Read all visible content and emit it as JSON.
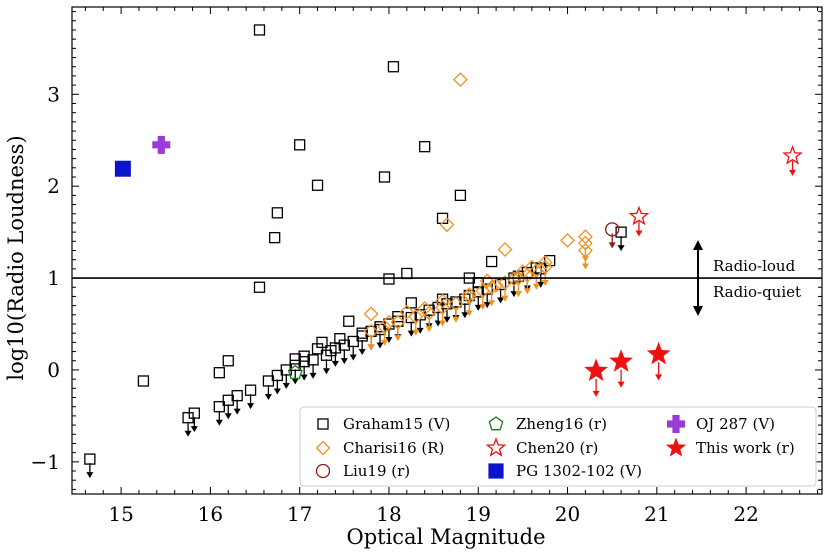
{
  "chart_data": {
    "type": "scatter",
    "xlabel": "Optical Magnitude",
    "ylabel": "log10(Radio Loudness)",
    "xlim": [
      14.45,
      22.85
    ],
    "ylim": [
      -1.35,
      3.95
    ],
    "xticks": [
      15,
      16,
      17,
      18,
      19,
      20,
      21,
      22
    ],
    "yticks": [
      -1,
      0,
      1,
      2,
      3
    ],
    "xtick_labels": [
      "15",
      "16",
      "17",
      "18",
      "19",
      "20",
      "21",
      "22"
    ],
    "ytick_labels": [
      "−1",
      "0",
      "1",
      "2",
      "3"
    ],
    "threshold_y": 1,
    "annotations": {
      "above": "Radio-loud",
      "below": "Radio-quiet"
    },
    "legend_position": "lower-right",
    "series": [
      {
        "name": "Graham15 (V)",
        "marker": "square-open",
        "color": "#000000",
        "detections": [
          [
            16.55,
            3.7
          ],
          [
            18.05,
            3.3
          ],
          [
            17.0,
            2.45
          ],
          [
            18.4,
            2.43
          ],
          [
            17.2,
            2.01
          ],
          [
            17.95,
            2.1
          ],
          [
            18.8,
            1.9
          ],
          [
            18.6,
            1.65
          ],
          [
            16.75,
            1.71
          ],
          [
            16.72,
            1.44
          ],
          [
            16.55,
            0.9
          ],
          [
            18.0,
            0.99
          ],
          [
            18.2,
            1.05
          ],
          [
            19.15,
            1.18
          ],
          [
            18.9,
            1.0
          ],
          [
            19.0,
            0.95
          ],
          [
            15.25,
            -0.12
          ],
          [
            16.2,
            0.1
          ],
          [
            16.1,
            -0.03
          ],
          [
            17.55,
            0.53
          ],
          [
            18.25,
            0.73
          ],
          [
            19.45,
            1.02
          ],
          [
            19.65,
            1.11
          ],
          [
            19.8,
            1.19
          ],
          [
            18.6,
            0.77
          ],
          [
            18.9,
            0.81
          ],
          [
            17.7,
            0.4
          ],
          [
            17.9,
            0.47
          ],
          [
            18.1,
            0.58
          ],
          [
            17.35,
            0.21
          ],
          [
            17.2,
            0.23
          ],
          [
            17.05,
            0.15
          ],
          [
            16.95,
            0.12
          ],
          [
            17.25,
            0.3
          ],
          [
            17.45,
            0.34
          ]
        ],
        "upper_limits": [
          [
            20.6,
            1.5
          ],
          [
            14.65,
            -0.97
          ],
          [
            15.75,
            -0.52
          ],
          [
            15.82,
            -0.47
          ],
          [
            16.1,
            -0.4
          ],
          [
            16.2,
            -0.33
          ],
          [
            16.3,
            -0.28
          ],
          [
            16.45,
            -0.22
          ],
          [
            16.65,
            -0.12
          ],
          [
            16.75,
            -0.06
          ],
          [
            16.85,
            0.0
          ],
          [
            16.95,
            0.05
          ],
          [
            17.05,
            0.09
          ],
          [
            17.15,
            0.11
          ],
          [
            17.3,
            0.16
          ],
          [
            17.4,
            0.24
          ],
          [
            17.5,
            0.27
          ],
          [
            17.6,
            0.31
          ],
          [
            17.7,
            0.37
          ],
          [
            17.8,
            0.42
          ],
          [
            17.9,
            0.44
          ],
          [
            18.0,
            0.5
          ],
          [
            18.1,
            0.53
          ],
          [
            18.25,
            0.57
          ],
          [
            18.35,
            0.6
          ],
          [
            18.45,
            0.65
          ],
          [
            18.55,
            0.68
          ],
          [
            18.65,
            0.72
          ],
          [
            18.75,
            0.74
          ],
          [
            18.85,
            0.77
          ],
          [
            19.0,
            0.85
          ],
          [
            19.1,
            0.88
          ],
          [
            19.25,
            0.93
          ],
          [
            19.4,
            1.0
          ],
          [
            19.55,
            1.06
          ],
          [
            19.7,
            1.1
          ]
        ]
      },
      {
        "name": "Charisi16 (R)",
        "marker": "diamond-open",
        "color": "#f0921e",
        "detections": [
          [
            18.8,
            3.16
          ],
          [
            18.65,
            1.58
          ],
          [
            19.3,
            1.31
          ],
          [
            19.1,
            0.97
          ],
          [
            17.8,
            0.61
          ],
          [
            18.0,
            0.52
          ],
          [
            18.2,
            0.63
          ],
          [
            18.4,
            0.67
          ],
          [
            18.6,
            0.75
          ],
          [
            18.9,
            0.82
          ],
          [
            19.2,
            0.92
          ],
          [
            19.4,
            0.99
          ],
          [
            19.5,
            1.07
          ],
          [
            19.6,
            1.12
          ],
          [
            19.75,
            1.17
          ],
          [
            20.0,
            1.41
          ],
          [
            20.2,
            1.45
          ]
        ],
        "upper_limits": [
          [
            17.8,
            0.42
          ],
          [
            17.95,
            0.47
          ],
          [
            18.1,
            0.52
          ],
          [
            18.3,
            0.58
          ],
          [
            18.45,
            0.62
          ],
          [
            18.6,
            0.68
          ],
          [
            18.75,
            0.72
          ],
          [
            18.9,
            0.79
          ],
          [
            19.05,
            0.86
          ],
          [
            19.15,
            0.9
          ],
          [
            19.3,
            0.95
          ],
          [
            19.45,
            1.0
          ],
          [
            19.55,
            1.03
          ],
          [
            19.65,
            1.08
          ],
          [
            19.75,
            1.12
          ],
          [
            20.2,
            1.38
          ],
          [
            20.2,
            1.3
          ]
        ]
      },
      {
        "name": "Liu19 (r)",
        "marker": "circle-open",
        "color": "#8b1a1a",
        "detections": [],
        "upper_limits": [
          [
            20.5,
            1.53
          ]
        ]
      },
      {
        "name": "Zheng16 (r)",
        "marker": "pentagon-open",
        "color": "#1a7a1a",
        "detections": [
          [
            16.95,
            -0.03
          ]
        ],
        "upper_limits": []
      },
      {
        "name": "Chen20 (r)",
        "marker": "star-open",
        "color": "#ee1111",
        "detections": [],
        "upper_limits": [
          [
            22.52,
            2.33
          ],
          [
            20.8,
            1.67
          ]
        ]
      },
      {
        "name": "PG 1302-102 (V)",
        "marker": "square-filled",
        "color": "#0a14c8",
        "detections": [
          [
            15.02,
            2.19
          ]
        ],
        "upper_limits": []
      },
      {
        "name": "OJ 287 (V)",
        "marker": "plus-filled",
        "color": "#9b3ad6",
        "detections": [
          [
            15.45,
            2.45
          ]
        ],
        "upper_limits": []
      },
      {
        "name": "This work (r)",
        "marker": "star-filled",
        "color": "#ee1111",
        "detections": [],
        "upper_limits": [
          [
            20.32,
            -0.01
          ],
          [
            20.6,
            0.09
          ],
          [
            21.02,
            0.17
          ]
        ]
      }
    ]
  }
}
